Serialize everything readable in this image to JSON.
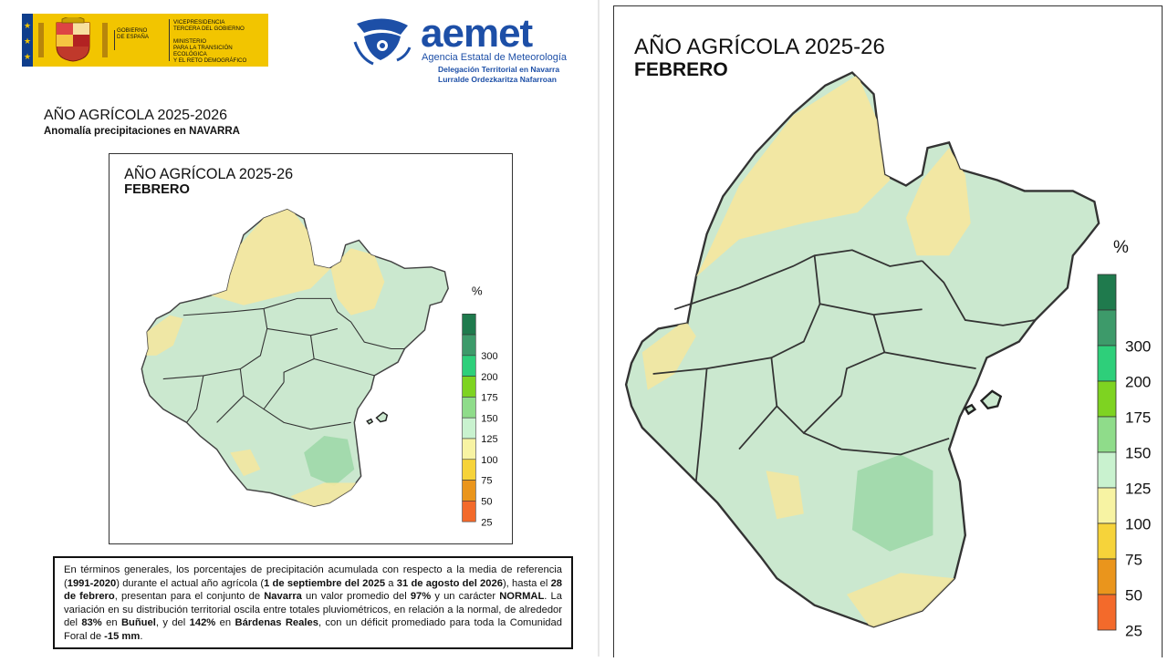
{
  "gov": {
    "line1": "GOBIERNO",
    "line2": "DE ESPAÑA",
    "ministry_lines": [
      "VICEPRESIDENCIA",
      "TERCERA DEL GOBIERNO",
      "",
      "MINISTERIO",
      "PARA LA TRANSICIÓN ECOLÓGICA",
      "Y EL RETO DEMOGRÁFICO"
    ]
  },
  "aemet": {
    "name": "aemet",
    "agency": "Agencia Estatal de Meteorología",
    "delegation": "Delegación Territorial en Navarra",
    "delegation_basque": "Lurralde Ordezkaritza Nafarroan"
  },
  "page": {
    "title": "AÑO AGRÍCOLA 2025-2026",
    "subtitle": "Anomalía precipitaciones en NAVARRA"
  },
  "map": {
    "title": "AÑO AGRÍCOLA 2025-26",
    "month": "FEBRERO",
    "unit": "%",
    "legend": [
      {
        "label": "",
        "color": "#1f7a4d"
      },
      {
        "label": "300",
        "color": "#3d9a6a"
      },
      {
        "label": "200",
        "color": "#2ecf7a"
      },
      {
        "label": "175",
        "color": "#7ed321"
      },
      {
        "label": "150",
        "color": "#8fdc8a"
      },
      {
        "label": "125",
        "color": "#c9f2cf"
      },
      {
        "label": "100",
        "color": "#f7f3a3"
      },
      {
        "label": "75",
        "color": "#f6d33a"
      },
      {
        "label": "50",
        "color": "#ea951c"
      },
      {
        "label": "25",
        "color": "#f36a2b"
      }
    ]
  },
  "description": {
    "p1": "En términos generales, los porcentajes de precipitación acumulada con respecto a la media de referencia (",
    "ref": "1991-2020",
    "p2": ") durante el actual año agrícola (",
    "start": "1 de septiembre del 2025",
    "p3": " a ",
    "end": "31 de agosto del 2026",
    "p4": "), hasta el ",
    "date": "28 de febrero",
    "p5": ", presentan para el conjunto de ",
    "region": "Navarra",
    "p6": " un valor promedio del ",
    "avg": "97%",
    "p7": " y un carácter ",
    "character": "NORMAL",
    "p8": ". La variación en su distribución territorial oscila entre totales pluviométricos, en relación a la normal, de alrededor del ",
    "min_val": "83%",
    "p9": " en ",
    "min_place": "Buñuel",
    "p10": ", y del ",
    "max_val": "142%",
    "p11": " en ",
    "max_place": "Bárdenas Reales",
    "p12": ", con un déficit promediado para toda la Comunidad Foral de ",
    "deficit": "-15 mm",
    "p13": "."
  }
}
